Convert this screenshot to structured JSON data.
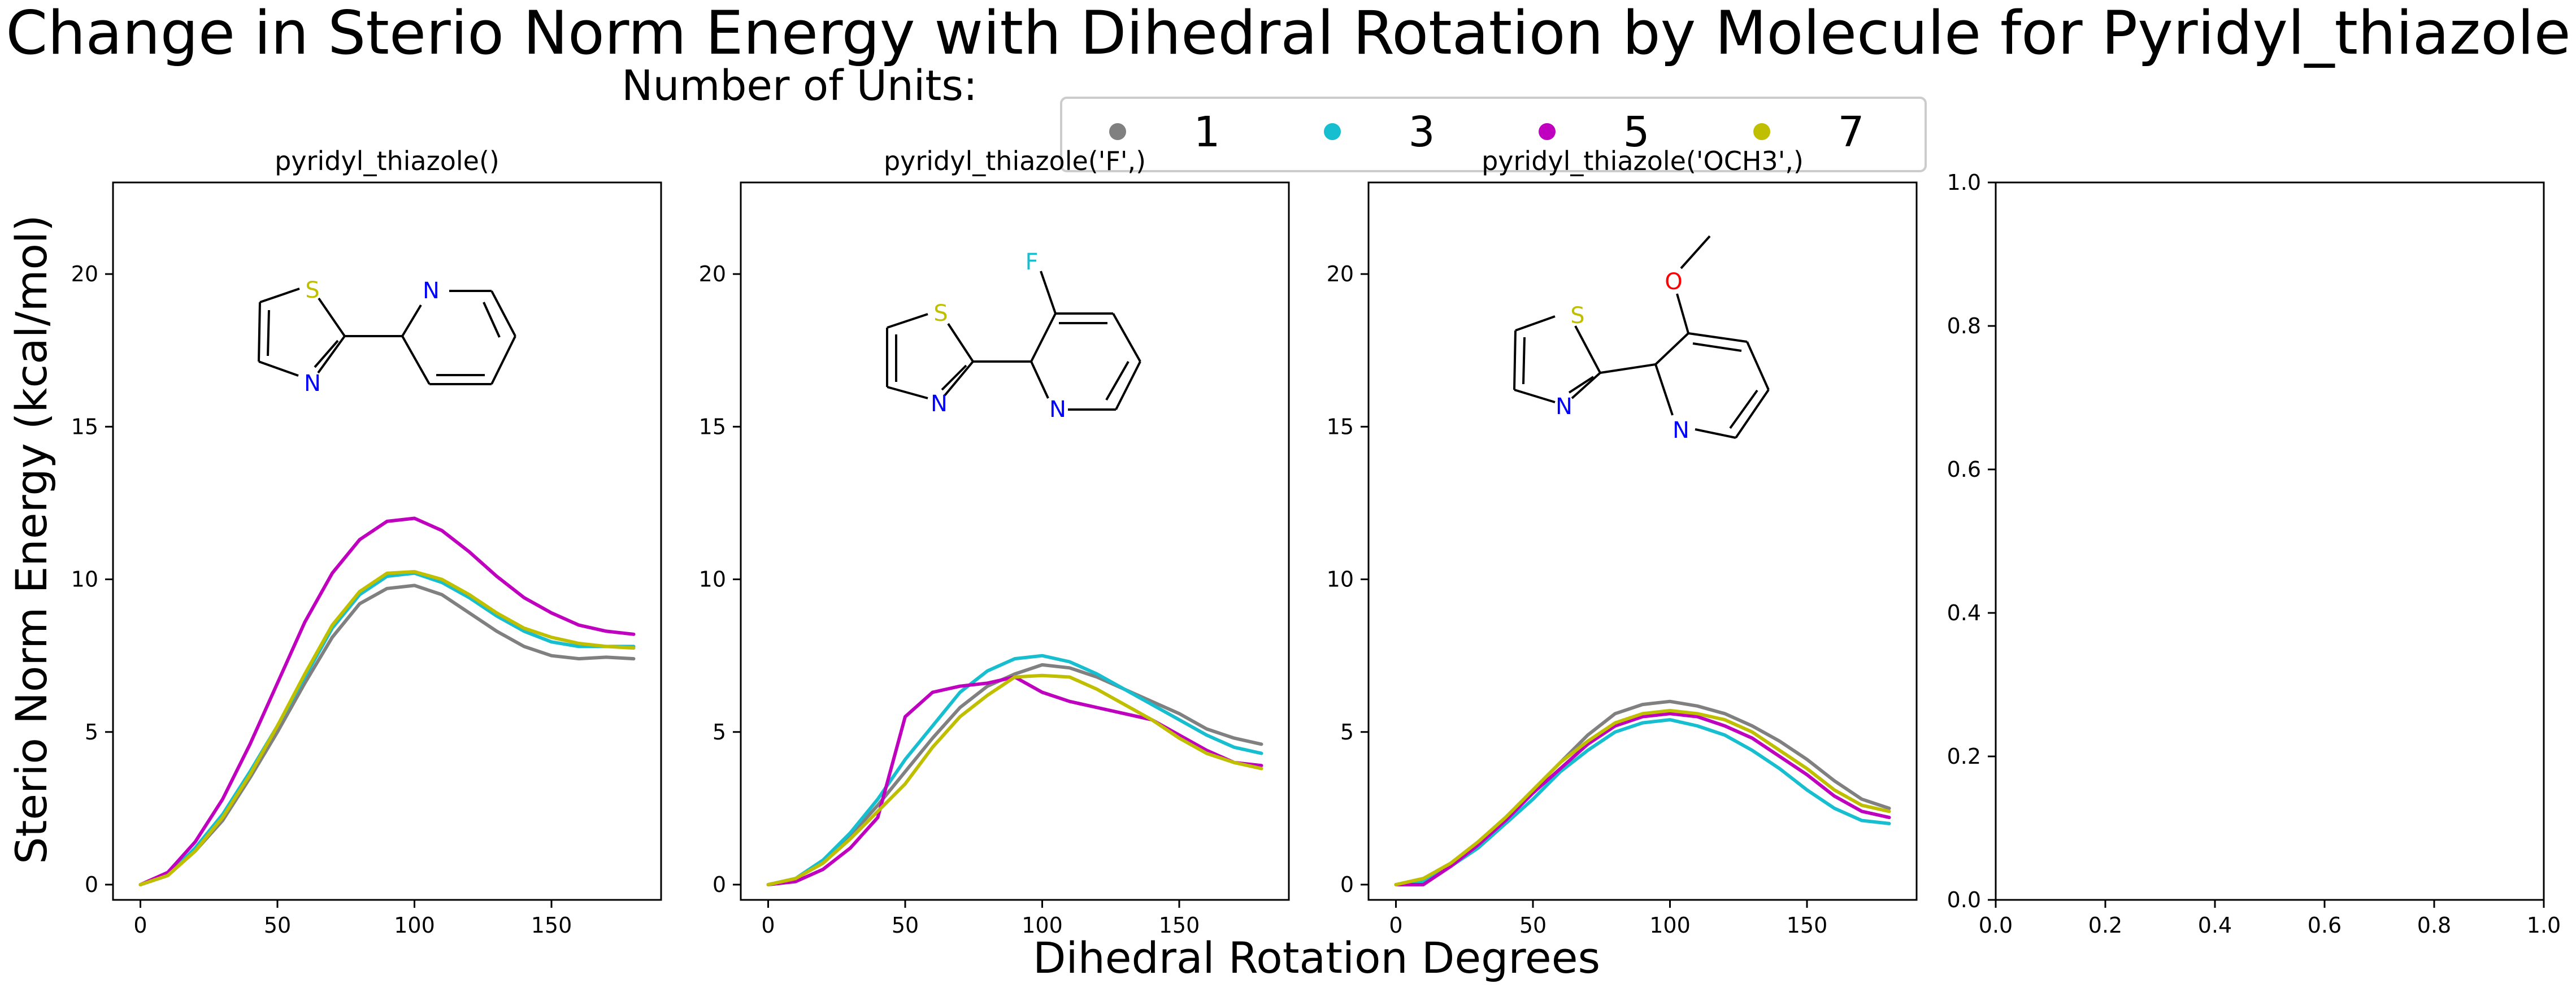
{
  "figure": {
    "title": "Change in Sterio Norm Energy with Dihedral Rotation by Molecule for Pyridyl_thiazole",
    "ylabel": "Sterio Norm Energy (kcal/mol)",
    "xlabel": "Dihedral Rotation Degrees"
  },
  "legend": {
    "title": "Number of Units:",
    "placement": "top-center",
    "entries": [
      {
        "label": "1",
        "color": "#808080"
      },
      {
        "label": "3",
        "color": "#17becf"
      },
      {
        "label": "5",
        "color": "#bf00bf"
      },
      {
        "label": "7",
        "color": "#bfbf00"
      }
    ]
  },
  "chart_data": [
    {
      "type": "line",
      "title": "pyridyl_thiazole()",
      "x": [
        0,
        10,
        20,
        30,
        40,
        50,
        60,
        70,
        80,
        90,
        100,
        110,
        120,
        130,
        140,
        150,
        160,
        170,
        180
      ],
      "xlim": [
        -10,
        190
      ],
      "ylim": [
        -0.5,
        23
      ],
      "xticks": [
        0,
        50,
        100,
        150
      ],
      "yticks": [
        0,
        5,
        10,
        15,
        20
      ],
      "series": [
        {
          "name": "1",
          "color": "#808080",
          "values": [
            0,
            0.3,
            1.1,
            2.1,
            3.5,
            5.0,
            6.6,
            8.1,
            9.2,
            9.7,
            9.8,
            9.5,
            8.9,
            8.3,
            7.8,
            7.5,
            7.4,
            7.45,
            7.4
          ]
        },
        {
          "name": "3",
          "color": "#17becf",
          "values": [
            0,
            0.3,
            1.2,
            2.3,
            3.7,
            5.2,
            6.8,
            8.4,
            9.5,
            10.1,
            10.2,
            9.9,
            9.4,
            8.8,
            8.3,
            7.95,
            7.8,
            7.8,
            7.8
          ]
        },
        {
          "name": "5",
          "color": "#bf00bf",
          "values": [
            0,
            0.4,
            1.4,
            2.8,
            4.6,
            6.6,
            8.6,
            10.2,
            11.3,
            11.9,
            12.0,
            11.6,
            10.9,
            10.1,
            9.4,
            8.9,
            8.5,
            8.3,
            8.2
          ]
        },
        {
          "name": "7",
          "color": "#bfbf00",
          "values": [
            0,
            0.3,
            1.1,
            2.2,
            3.6,
            5.2,
            6.9,
            8.5,
            9.6,
            10.2,
            10.25,
            10.0,
            9.5,
            8.9,
            8.4,
            8.1,
            7.9,
            7.8,
            7.75
          ]
        }
      ]
    },
    {
      "type": "line",
      "title": "pyridyl_thiazole('F',)",
      "x": [
        0,
        10,
        20,
        30,
        40,
        50,
        60,
        70,
        80,
        90,
        100,
        110,
        120,
        130,
        140,
        150,
        160,
        170,
        180
      ],
      "xlim": [
        -10,
        190
      ],
      "ylim": [
        -0.5,
        23
      ],
      "xticks": [
        0,
        50,
        100,
        150
      ],
      "yticks": [
        0,
        5,
        10,
        15,
        20
      ],
      "series": [
        {
          "name": "1",
          "color": "#808080",
          "values": [
            0,
            0.2,
            0.8,
            1.6,
            2.6,
            3.7,
            4.8,
            5.8,
            6.5,
            6.9,
            7.2,
            7.1,
            6.8,
            6.4,
            6.0,
            5.6,
            5.1,
            4.8,
            4.6
          ]
        },
        {
          "name": "3",
          "color": "#17becf",
          "values": [
            0,
            0.2,
            0.8,
            1.7,
            2.8,
            4.1,
            5.2,
            6.3,
            7.0,
            7.4,
            7.5,
            7.3,
            6.9,
            6.4,
            5.9,
            5.4,
            4.9,
            4.5,
            4.3
          ]
        },
        {
          "name": "5",
          "color": "#bf00bf",
          "values": [
            0,
            0.1,
            0.5,
            1.2,
            2.2,
            5.5,
            6.3,
            6.5,
            6.6,
            6.8,
            6.3,
            6.0,
            5.8,
            5.6,
            5.4,
            4.9,
            4.4,
            4.0,
            3.9
          ]
        },
        {
          "name": "7",
          "color": "#bfbf00",
          "values": [
            0,
            0.2,
            0.7,
            1.5,
            2.4,
            3.3,
            4.5,
            5.5,
            6.2,
            6.8,
            6.85,
            6.8,
            6.4,
            5.9,
            5.4,
            4.8,
            4.3,
            4.0,
            3.8
          ]
        }
      ]
    },
    {
      "type": "line",
      "title": "pyridyl_thiazole('OCH3',)",
      "x": [
        0,
        10,
        20,
        30,
        40,
        50,
        60,
        70,
        80,
        90,
        100,
        110,
        120,
        130,
        140,
        150,
        160,
        170,
        180
      ],
      "xlim": [
        -10,
        190
      ],
      "ylim": [
        -0.5,
        23
      ],
      "xticks": [
        0,
        50,
        100,
        150
      ],
      "yticks": [
        0,
        5,
        10,
        15,
        20
      ],
      "series": [
        {
          "name": "1",
          "color": "#808080",
          "values": [
            0,
            0.2,
            0.7,
            1.4,
            2.2,
            3.1,
            4.0,
            4.9,
            5.6,
            5.9,
            6.0,
            5.85,
            5.6,
            5.2,
            4.7,
            4.1,
            3.4,
            2.8,
            2.5
          ]
        },
        {
          "name": "3",
          "color": "#17becf",
          "values": [
            0,
            0.1,
            0.6,
            1.2,
            2.0,
            2.8,
            3.7,
            4.4,
            5.0,
            5.3,
            5.4,
            5.2,
            4.9,
            4.4,
            3.8,
            3.1,
            2.5,
            2.1,
            2.0
          ]
        },
        {
          "name": "5",
          "color": "#bf00bf",
          "values": [
            0,
            0.0,
            0.6,
            1.3,
            2.1,
            3.0,
            3.8,
            4.6,
            5.2,
            5.5,
            5.6,
            5.5,
            5.2,
            4.8,
            4.2,
            3.6,
            2.9,
            2.4,
            2.2
          ]
        },
        {
          "name": "7",
          "color": "#bfbf00",
          "values": [
            0,
            0.2,
            0.7,
            1.4,
            2.2,
            3.1,
            4.0,
            4.7,
            5.3,
            5.6,
            5.7,
            5.6,
            5.4,
            5.0,
            4.4,
            3.8,
            3.1,
            2.6,
            2.4
          ]
        }
      ]
    },
    {
      "type": "line",
      "title": "",
      "x": [],
      "xlim": [
        0,
        1
      ],
      "ylim": [
        0,
        1
      ],
      "xticks": [
        0.0,
        0.2,
        0.4,
        0.6,
        0.8,
        1.0
      ],
      "yticks": [
        0.0,
        0.2,
        0.4,
        0.6,
        0.8,
        1.0
      ],
      "xtick_labels": [
        "0.0",
        "0.2",
        "0.4",
        "0.6",
        "0.8",
        "1.0"
      ],
      "ytick_labels": [
        "0.0",
        "0.2",
        "0.4",
        "0.6",
        "0.8",
        "1.0"
      ],
      "series": []
    }
  ],
  "molecules": [
    {
      "atoms": [
        "S",
        "N",
        "N"
      ]
    },
    {
      "atoms": [
        "F",
        "S",
        "N",
        "N"
      ]
    },
    {
      "atoms": [
        "O",
        "S",
        "N",
        "N"
      ]
    }
  ]
}
